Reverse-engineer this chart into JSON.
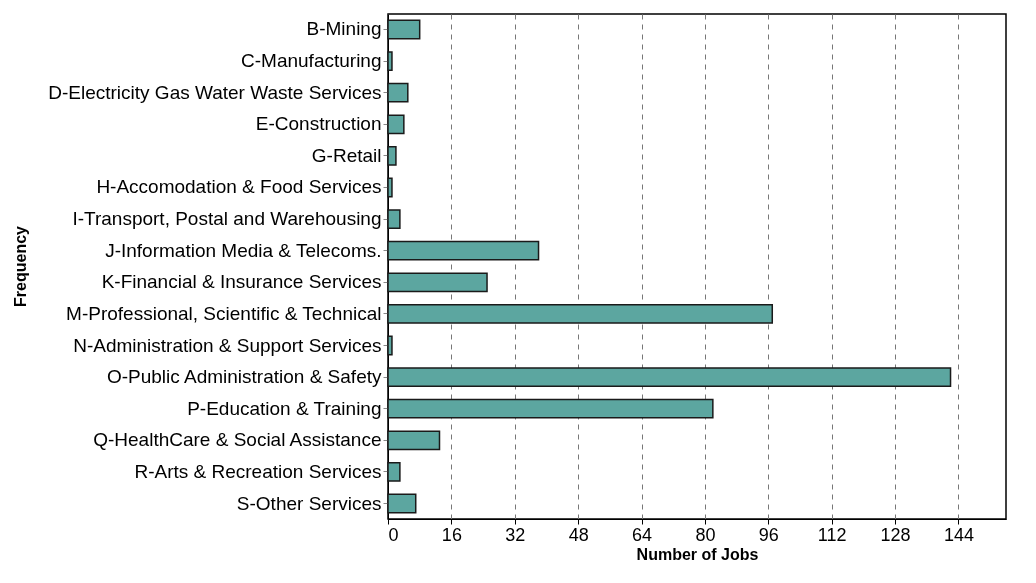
{
  "chart_data": {
    "type": "bar",
    "orientation": "horizontal",
    "xlabel": "Number of Jobs",
    "ylabel": "Frequency",
    "categories": [
      "B-Mining",
      "C-Manufacturing",
      "D-Electricity Gas Water Waste Services",
      "E-Construction",
      "G-Retail",
      "H-Accomodation & Food Services",
      "I-Transport, Postal and Warehousing",
      "J-Information Media & Telecoms.",
      "K-Financial & Insurance Services",
      "M-Professional, Scientific & Technical",
      "N-Administration & Support Services",
      "O-Public Administration & Safety",
      "P-Education & Training",
      "Q-HealthCare & Social Assistance",
      "R-Arts & Recreation Services",
      "S-Other Services"
    ],
    "values": [
      8,
      1,
      5,
      4,
      2,
      1,
      3,
      38,
      25,
      97,
      1,
      142,
      82,
      13,
      3,
      7
    ],
    "color": "#5ca6a0",
    "xlim": [
      0,
      156
    ],
    "xticks": [
      0,
      16,
      32,
      48,
      64,
      80,
      96,
      112,
      128,
      144
    ],
    "grid": "x"
  }
}
